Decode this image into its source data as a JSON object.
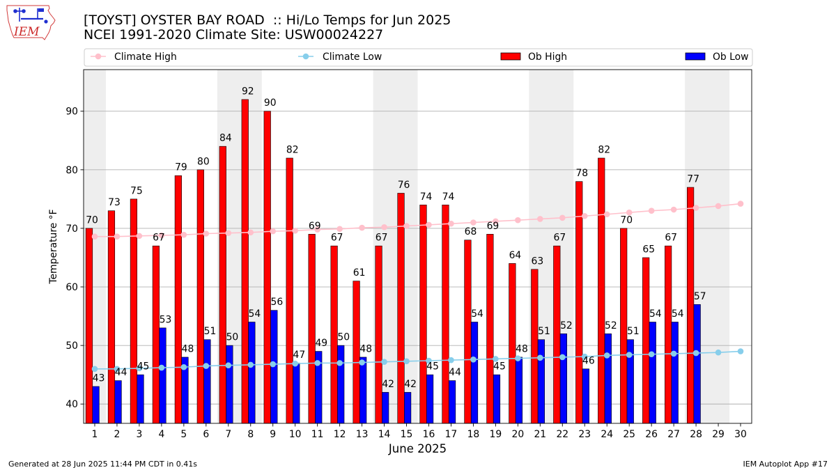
{
  "logo": {
    "text": "IEM"
  },
  "footer": {
    "left": "Generated at 28 Jun 2025 11:44 PM CDT in 0.41s",
    "right": "IEM Autoplot App #17"
  },
  "chart_data": {
    "type": "bar",
    "title": "[TOYST] OYSTER BAY ROAD  :: Hi/Lo Temps for Jun 2025",
    "subtitle": "NCEI 1991-2020 Climate Site: USW00024227",
    "xlabel": "June 2025",
    "ylabel": "Temperature °F",
    "x": [
      1,
      2,
      3,
      4,
      5,
      6,
      7,
      8,
      9,
      10,
      11,
      12,
      13,
      14,
      15,
      16,
      17,
      18,
      19,
      20,
      21,
      22,
      23,
      24,
      25,
      26,
      27,
      28,
      29,
      30
    ],
    "xlim": [
      0.5,
      30.5
    ],
    "ylim": [
      36.7,
      97.1
    ],
    "yticks": [
      40,
      50,
      60,
      70,
      80,
      90
    ],
    "grid": "horizontal",
    "grid_color": "#b0b0b0",
    "legend_placement": "top",
    "shaded_days": [
      1,
      7,
      8,
      14,
      15,
      21,
      22,
      28,
      29
    ],
    "shade_color": "#eeeeee",
    "series": [
      {
        "name": "Climate High",
        "type": "line",
        "marker": "circle",
        "color": "#ffc0cb",
        "values": [
          68.6,
          68.6,
          68.7,
          68.8,
          68.9,
          69.1,
          69.2,
          69.3,
          69.5,
          69.6,
          69.8,
          69.9,
          70.1,
          70.2,
          70.4,
          70.6,
          70.8,
          71.0,
          71.2,
          71.4,
          71.6,
          71.8,
          72.1,
          72.4,
          72.7,
          73.0,
          73.2,
          73.5,
          73.8,
          74.2
        ]
      },
      {
        "name": "Climate Low",
        "type": "line",
        "marker": "circle",
        "color": "#87ceeb",
        "values": [
          46.0,
          46.0,
          46.1,
          46.2,
          46.3,
          46.5,
          46.6,
          46.7,
          46.8,
          46.9,
          47.0,
          47.0,
          47.1,
          47.2,
          47.3,
          47.4,
          47.5,
          47.6,
          47.7,
          47.8,
          47.9,
          48.0,
          48.1,
          48.3,
          48.4,
          48.5,
          48.6,
          48.7,
          48.8,
          49.0
        ]
      },
      {
        "name": "Ob High",
        "type": "bar",
        "color": "#ff0000",
        "values": [
          70,
          73,
          75,
          67,
          79,
          80,
          84,
          92,
          90,
          82,
          69,
          67,
          61,
          67,
          76,
          74,
          74,
          68,
          69,
          64,
          63,
          67,
          78,
          82,
          70,
          65,
          67,
          77,
          null,
          null
        ]
      },
      {
        "name": "Ob Low",
        "type": "bar",
        "color": "#0000ff",
        "values": [
          43,
          44,
          45,
          53,
          48,
          51,
          50,
          54,
          56,
          47,
          49,
          50,
          48,
          42,
          42,
          45,
          44,
          54,
          45,
          48,
          51,
          52,
          46,
          52,
          51,
          54,
          54,
          57,
          null,
          null
        ]
      }
    ]
  }
}
